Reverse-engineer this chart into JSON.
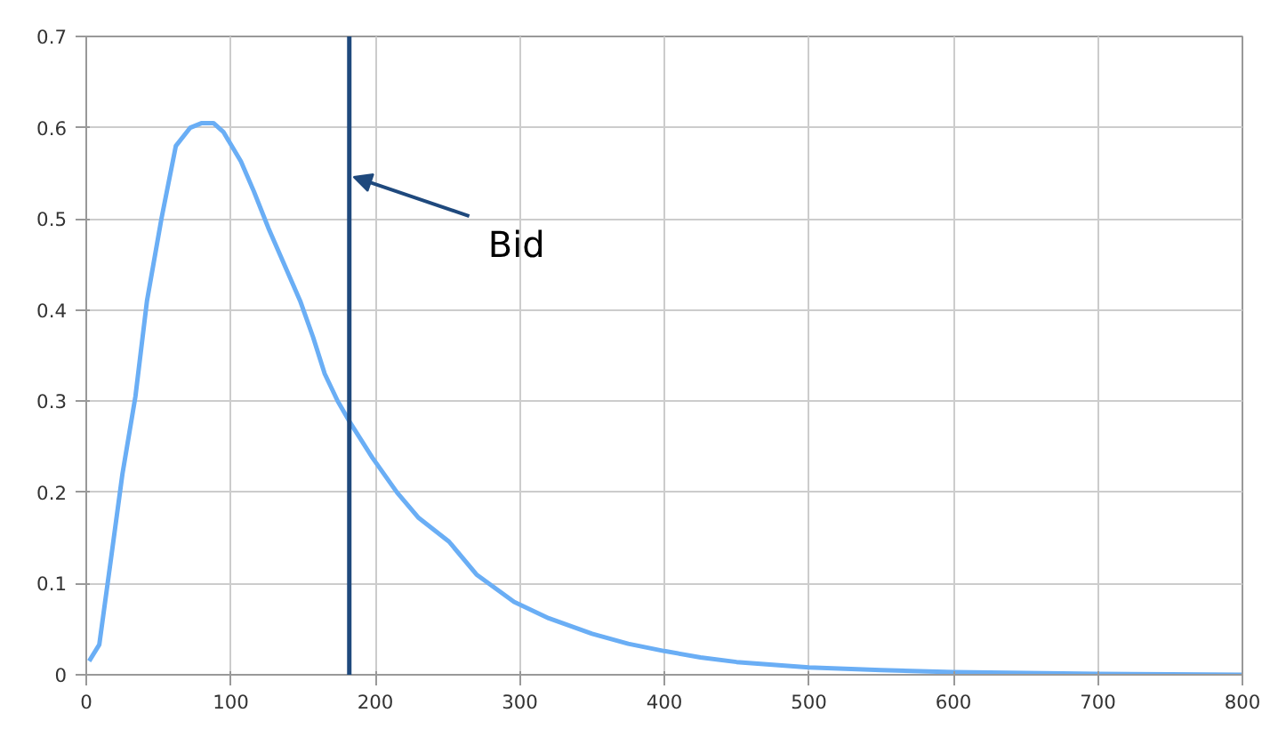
{
  "chart_data": {
    "type": "line",
    "xlim": [
      0,
      800
    ],
    "ylim": [
      0,
      0.7
    ],
    "xticks": [
      0,
      100,
      200,
      300,
      400,
      500,
      600,
      700,
      800
    ],
    "yticks": [
      0,
      0.1,
      0.2,
      0.3,
      0.4,
      0.5,
      0.6,
      0.7
    ],
    "grid": true,
    "marker": "none",
    "line_style": "solid",
    "series": [
      {
        "color": "#6aaef5",
        "x": [
          2,
          9,
          17,
          25,
          34,
          42,
          52,
          62,
          72,
          80,
          88,
          95,
          107,
          116,
          126,
          137,
          148,
          157,
          165,
          174,
          182,
          190,
          198,
          215,
          230,
          251,
          270,
          296,
          320,
          350,
          375,
          400,
          425,
          450,
          475,
          500,
          550,
          600,
          650,
          700,
          750,
          800
        ],
        "values": [
          0.015,
          0.033,
          0.126,
          0.22,
          0.305,
          0.41,
          0.5,
          0.58,
          0.6,
          0.605,
          0.605,
          0.595,
          0.563,
          0.53,
          0.49,
          0.45,
          0.41,
          0.37,
          0.33,
          0.3,
          0.278,
          0.258,
          0.238,
          0.2,
          0.172,
          0.146,
          0.11,
          0.08,
          0.062,
          0.045,
          0.034,
          0.026,
          0.019,
          0.014,
          0.011,
          0.008,
          0.005,
          0.003,
          0.002,
          0.001,
          0.0005,
          0.0
        ]
      }
    ],
    "ref_lines": [
      {
        "axis": "x",
        "value": 182,
        "label": "Bid",
        "color": "#1f497d",
        "line_style": "solid"
      }
    ]
  }
}
